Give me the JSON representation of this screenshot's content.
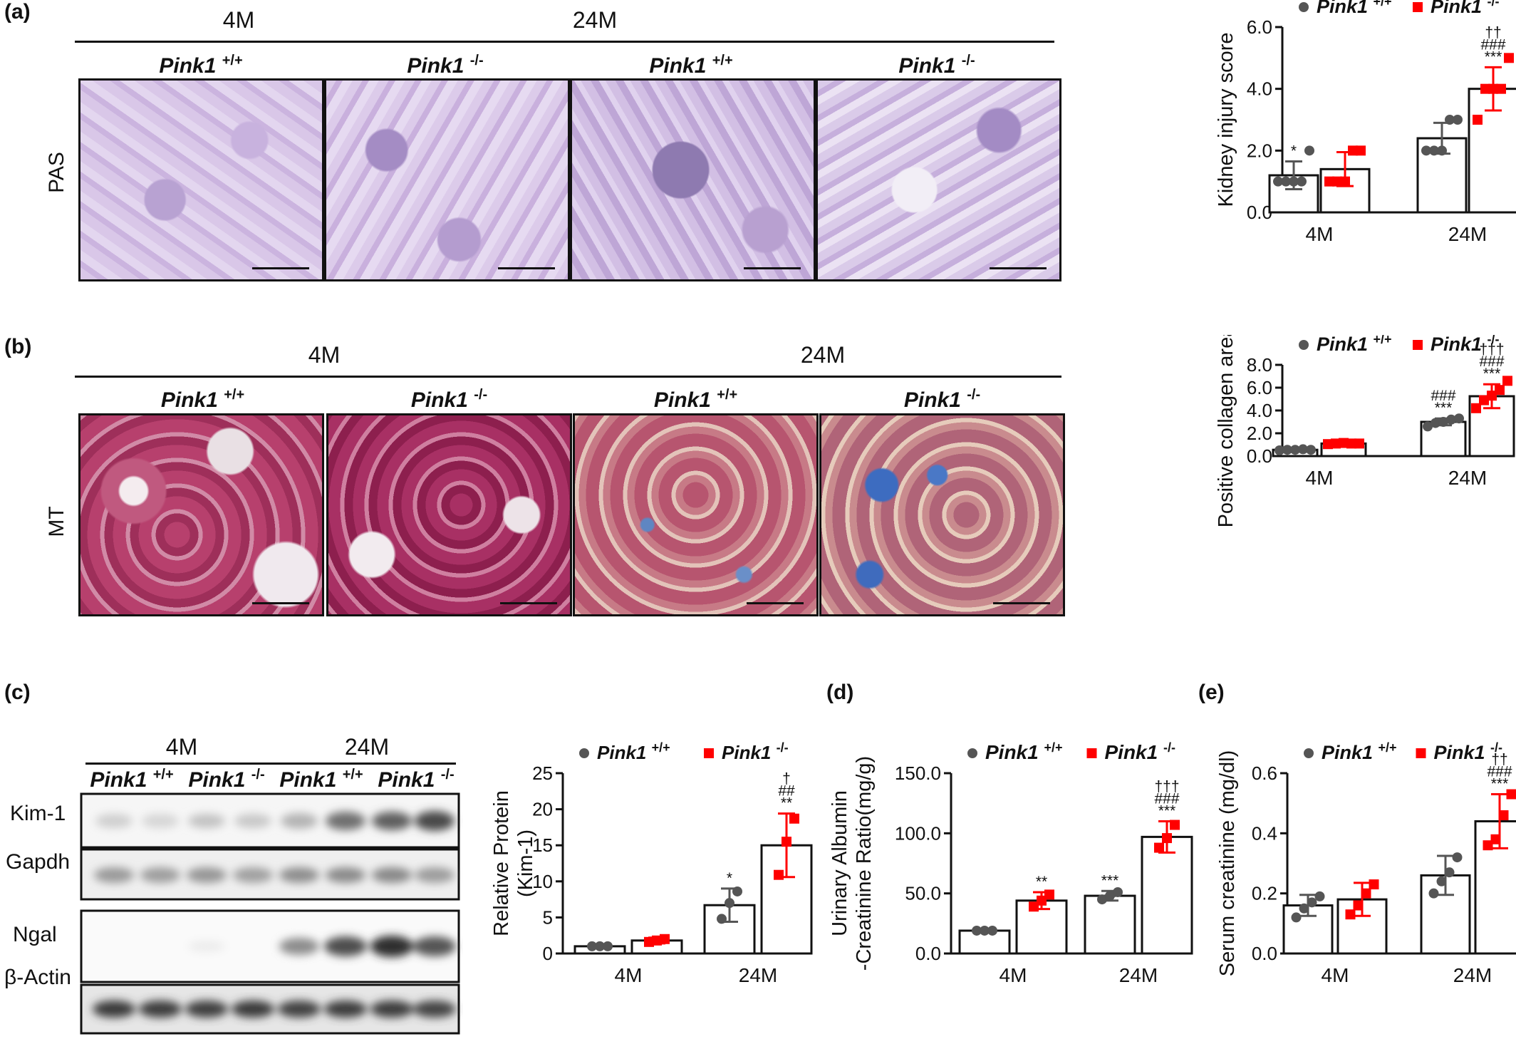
{
  "labels": {
    "a": "(a)",
    "b": "(b)",
    "c": "(c)",
    "d": "(d)",
    "e": "(e)"
  },
  "groups": {
    "young": "4M",
    "old": "24M"
  },
  "geno": {
    "wt_name": "Pink1",
    "wt_sup": "+/+",
    "ko_name": "Pink1",
    "ko_sup": "-/-"
  },
  "stains": {
    "pas": "PAS",
    "mt": "MT"
  },
  "blot": {
    "rows": [
      "Kim-1",
      "Gapdh",
      "Ngal",
      "β-Actin"
    ]
  },
  "colors": {
    "wt": "#555555",
    "ko": "#ff0000",
    "pas_bg": "#d8c4e6",
    "mt_bg": "#b84a78"
  },
  "chart_data": [
    {
      "id": "a",
      "type": "bar",
      "ylabel": "Kidney injury score",
      "categories": [
        "4M",
        "24M"
      ],
      "ylim": [
        0,
        6
      ],
      "yticks": [
        "0.0",
        "2.0",
        "4.0",
        "6.0"
      ],
      "series": [
        {
          "name": "Pink1 +/+",
          "values": [
            1.2,
            2.4
          ],
          "err": [
            0.45,
            0.5
          ],
          "points": [
            [
              1,
              1,
              1,
              1,
              2
            ],
            [
              2,
              2,
              2,
              3,
              3
            ]
          ]
        },
        {
          "name": "Pink1 -/-",
          "values": [
            1.4,
            4.0
          ],
          "err": [
            0.55,
            0.7
          ],
          "points": [
            [
              1,
              1,
              1,
              2,
              2
            ],
            [
              3,
              4,
              4,
              4,
              5
            ]
          ]
        }
      ],
      "annotations": [
        [
          "*",
          ""
        ],
        [
          "",
          "***\n###\n††"
        ]
      ]
    },
    {
      "id": "b",
      "type": "bar",
      "ylabel": "Positive collagen area(%)",
      "categories": [
        "4M",
        "24M"
      ],
      "ylim": [
        0,
        8
      ],
      "yticks": [
        "0.0",
        "2.0",
        "4.0",
        "6.0",
        "8.0"
      ],
      "series": [
        {
          "name": "Pink1 +/+",
          "values": [
            0.55,
            3.0
          ],
          "err": [
            0.05,
            0.3
          ],
          "points": [
            [
              0.5,
              0.55,
              0.55,
              0.6,
              0.55
            ],
            [
              2.6,
              2.9,
              3.0,
              3.2,
              3.3
            ]
          ]
        },
        {
          "name": "Pink1 -/-",
          "values": [
            1.1,
            5.25
          ],
          "err": [
            0.1,
            1.05
          ],
          "points": [
            [
              1.05,
              1.1,
              1.15,
              1.1,
              1.1
            ],
            [
              4.2,
              4.9,
              5.3,
              5.8,
              6.6
            ]
          ]
        }
      ],
      "annotations": [
        [
          "",
          "***\n###"
        ],
        [
          "",
          "***\n###\n†††"
        ]
      ]
    },
    {
      "id": "c",
      "type": "bar",
      "ylabel": "Relative Protein\n(Kim-1)",
      "categories": [
        "4M",
        "24M"
      ],
      "ylim": [
        0,
        25
      ],
      "yticks": [
        "0",
        "5",
        "10",
        "15",
        "20",
        "25"
      ],
      "series": [
        {
          "name": "Pink1+/+",
          "values": [
            1.0,
            6.7
          ],
          "err": [
            0.1,
            2.3
          ],
          "points": [
            [
              1,
              1,
              1
            ],
            [
              4.8,
              7.0,
              8.6
            ]
          ]
        },
        {
          "name": "Pink1-/-",
          "values": [
            1.8,
            15.0
          ],
          "err": [
            0.4,
            4.4
          ],
          "points": [
            [
              1.6,
              1.8,
              2.0
            ],
            [
              10.9,
              15.5,
              18.7
            ]
          ]
        }
      ],
      "annotations": [
        [
          "",
          "*"
        ],
        [
          "",
          "**\n##\n†"
        ]
      ]
    },
    {
      "id": "d",
      "type": "bar",
      "ylabel": "Urinary Albumin\n-Creatinine Ratio(mg/g)",
      "categories": [
        "4M",
        "24M"
      ],
      "ylim": [
        0,
        150
      ],
      "yticks": [
        "0.0",
        "50.0",
        "100.0",
        "150.0"
      ],
      "series": [
        {
          "name": "Pink1 +/+",
          "values": [
            19,
            48
          ],
          "err": [
            1,
            4
          ],
          "points": [
            [
              19,
              19,
              19
            ],
            [
              45,
              48,
              51
            ]
          ]
        },
        {
          "name": "Pink1 -/-",
          "values": [
            44,
            97
          ],
          "err": [
            7,
            13
          ],
          "points": [
            [
              39,
              44,
              49
            ],
            [
              88,
              96,
              107
            ]
          ]
        }
      ],
      "annotations": [
        [
          "",
          "***"
        ],
        [
          "**",
          "***\n###\n†††"
        ]
      ]
    },
    {
      "id": "e",
      "type": "bar",
      "ylabel": "Serum  creatinine (mg/dl)",
      "categories": [
        "4M",
        "24M"
      ],
      "ylim": [
        0,
        0.6
      ],
      "yticks": [
        "0.0",
        "0.2",
        "0.4",
        "0.6"
      ],
      "series": [
        {
          "name": "Pink1 +/+",
          "values": [
            0.16,
            0.26
          ],
          "err": [
            0.035,
            0.065
          ],
          "points": [
            [
              0.12,
              0.15,
              0.17,
              0.19
            ],
            [
              0.2,
              0.24,
              0.27,
              0.32
            ]
          ]
        },
        {
          "name": "Pink1 -/-",
          "values": [
            0.18,
            0.44
          ],
          "err": [
            0.055,
            0.09
          ],
          "points": [
            [
              0.13,
              0.16,
              0.2,
              0.23
            ],
            [
              0.36,
              0.38,
              0.46,
              0.53
            ]
          ]
        }
      ],
      "annotations": [
        [
          "",
          ""
        ],
        [
          "",
          "***\n###\n††"
        ]
      ]
    }
  ]
}
